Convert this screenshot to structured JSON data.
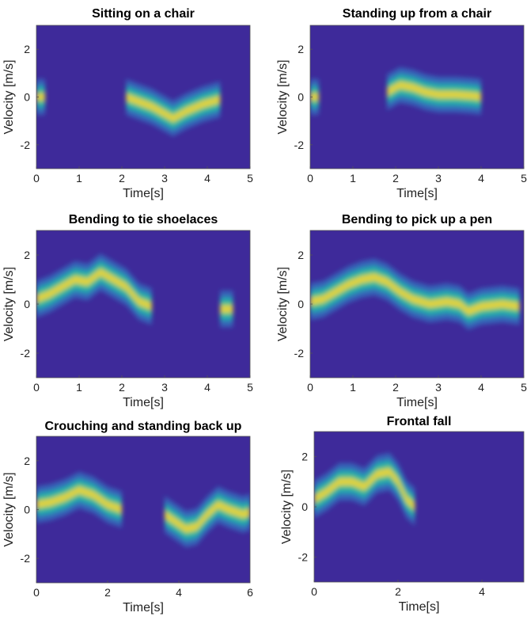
{
  "chart_data": [
    {
      "type": "heatmap",
      "title": "Sitting on a chair",
      "xlabel": "Time[s]",
      "ylabel": "Velocity [m/s]",
      "xlim": [
        0,
        5
      ],
      "ylim": [
        -3,
        3
      ],
      "xticks": [
        "0",
        "1",
        "2",
        "3",
        "4",
        "5"
      ],
      "yticks": [
        "2",
        "0",
        "-2"
      ],
      "grid": false,
      "colormap": "parula",
      "ridge": [
        [
          0,
          0.0
        ],
        [
          0.2,
          0.0
        ],
        [
          2.1,
          0.0
        ],
        [
          2.4,
          -0.2
        ],
        [
          2.7,
          -0.4
        ],
        [
          3.0,
          -0.7
        ],
        [
          3.2,
          -0.9
        ],
        [
          3.5,
          -0.6
        ],
        [
          3.9,
          -0.3
        ],
        [
          4.3,
          -0.1
        ]
      ]
    },
    {
      "type": "heatmap",
      "title": "Standing up from a chair",
      "xlabel": "Time[s]",
      "ylabel": "Velocity [m/s]",
      "xlim": [
        0,
        5
      ],
      "ylim": [
        -3,
        3
      ],
      "xticks": [
        "0",
        "1",
        "2",
        "3",
        "4",
        "5"
      ],
      "yticks": [
        "2",
        "0",
        "-2"
      ],
      "grid": false,
      "colormap": "parula",
      "ridge": [
        [
          0,
          0.0
        ],
        [
          0.2,
          0.0
        ],
        [
          1.8,
          0.2
        ],
        [
          2.1,
          0.5
        ],
        [
          2.4,
          0.4
        ],
        [
          2.7,
          0.2
        ],
        [
          3.0,
          0.1
        ],
        [
          3.4,
          0.1
        ],
        [
          3.8,
          0.05
        ],
        [
          4.0,
          0.0
        ]
      ]
    },
    {
      "type": "heatmap",
      "title": "Bending to tie shoelaces",
      "xlabel": "Time[s]",
      "ylabel": "Velocity [m/s]",
      "xlim": [
        0,
        5
      ],
      "ylim": [
        -3,
        3
      ],
      "xticks": [
        "0",
        "1",
        "2",
        "3",
        "4",
        "5"
      ],
      "yticks": [
        "2",
        "0",
        "-2"
      ],
      "grid": false,
      "colormap": "parula",
      "ridge": [
        [
          0,
          0.2
        ],
        [
          0.3,
          0.4
        ],
        [
          0.6,
          0.7
        ],
        [
          0.9,
          1.0
        ],
        [
          1.2,
          0.9
        ],
        [
          1.5,
          1.3
        ],
        [
          1.8,
          1.0
        ],
        [
          2.1,
          0.7
        ],
        [
          2.4,
          0.1
        ],
        [
          2.7,
          -0.1
        ],
        [
          4.3,
          -0.2
        ],
        [
          4.6,
          -0.2
        ]
      ]
    },
    {
      "type": "heatmap",
      "title": "Bending to pick up a pen",
      "xlabel": "Time[s]",
      "ylabel": "Velocity [m/s]",
      "xlim": [
        0,
        5
      ],
      "ylim": [
        -3,
        3
      ],
      "xticks": [
        "0",
        "1",
        "2",
        "3",
        "4",
        "5"
      ],
      "yticks": [
        "2",
        "0",
        "-2"
      ],
      "grid": false,
      "colormap": "parula",
      "ridge": [
        [
          0,
          0.1
        ],
        [
          0.3,
          0.2
        ],
        [
          0.6,
          0.5
        ],
        [
          0.9,
          0.8
        ],
        [
          1.2,
          1.0
        ],
        [
          1.5,
          1.1
        ],
        [
          1.8,
          0.9
        ],
        [
          2.1,
          0.5
        ],
        [
          2.4,
          0.2
        ],
        [
          2.8,
          0.0
        ],
        [
          3.2,
          0.1
        ],
        [
          3.5,
          0.0
        ],
        [
          3.7,
          -0.3
        ],
        [
          4.0,
          -0.1
        ],
        [
          4.5,
          0.0
        ],
        [
          4.9,
          -0.1
        ]
      ]
    },
    {
      "type": "heatmap",
      "title": "Crouching and standing back up",
      "xlabel": "Time[s]",
      "ylabel": "Velocity [m/s]",
      "xlim": [
        0,
        6
      ],
      "ylim": [
        -3,
        3
      ],
      "xticks": [
        "0",
        "2",
        "4",
        "6"
      ],
      "yticks": [
        "2",
        "0",
        "-2"
      ],
      "grid": false,
      "colormap": "parula",
      "ridge": [
        [
          0,
          0.2
        ],
        [
          0.4,
          0.3
        ],
        [
          0.8,
          0.5
        ],
        [
          1.2,
          0.8
        ],
        [
          1.6,
          0.6
        ],
        [
          2.0,
          0.2
        ],
        [
          2.4,
          0.0
        ],
        [
          3.6,
          -0.2
        ],
        [
          3.9,
          -0.5
        ],
        [
          4.2,
          -0.8
        ],
        [
          4.5,
          -0.7
        ],
        [
          4.8,
          -0.2
        ],
        [
          5.1,
          0.2
        ],
        [
          5.4,
          0.0
        ],
        [
          5.8,
          -0.2
        ],
        [
          6.0,
          -0.1
        ]
      ]
    },
    {
      "type": "heatmap",
      "title": "Frontal fall",
      "xlabel": "Time[s]",
      "ylabel": "Velocity [m/s]",
      "xlim": [
        0,
        5
      ],
      "ylim": [
        -3,
        3
      ],
      "xticks": [
        "0",
        "2",
        "4"
      ],
      "yticks": [
        "2",
        "0",
        "-2"
      ],
      "grid": false,
      "colormap": "parula",
      "ridge": [
        [
          0,
          0.3
        ],
        [
          0.3,
          0.6
        ],
        [
          0.6,
          1.0
        ],
        [
          0.9,
          1.0
        ],
        [
          1.2,
          0.8
        ],
        [
          1.5,
          1.3
        ],
        [
          1.8,
          1.4
        ],
        [
          2.0,
          1.0
        ],
        [
          2.2,
          0.3
        ],
        [
          2.4,
          0.0
        ]
      ]
    }
  ]
}
